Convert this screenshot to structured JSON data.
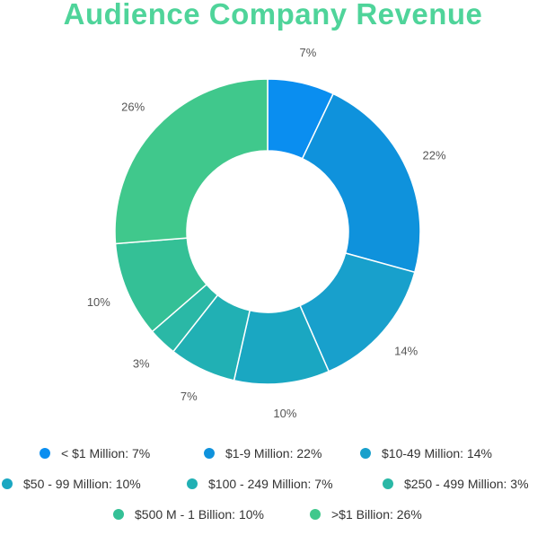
{
  "title": "Audience Company Revenue",
  "chart_data": {
    "type": "pie",
    "donut": true,
    "title": "Audience Company Revenue",
    "categories": [
      "< $1 Million",
      "$1-9 Million",
      "$10-49 Million",
      "$50 - 99 Million",
      "$100 - 249 Million",
      "$250 - 499 Million",
      "$500 M - 1 Billion",
      ">$1 Billion"
    ],
    "values": [
      7,
      22,
      14,
      10,
      7,
      3,
      10,
      26
    ],
    "value_labels": [
      "7%",
      "22%",
      "14%",
      "10%",
      "7%",
      "3%",
      "10%",
      "26%"
    ],
    "colors": [
      "#0a8ef0",
      "#0f92dc",
      "#18a0cc",
      "#1aa7c2",
      "#21b0b4",
      "#2ab8a6",
      "#34c096",
      "#40c88c"
    ],
    "legend_position": "bottom"
  },
  "legend": [
    {
      "label": "< $1 Million: 7%",
      "color": "#0a8ef0"
    },
    {
      "label": "$1-9 Million: 22%",
      "color": "#0f92dc"
    },
    {
      "label": "$10-49 Million: 14%",
      "color": "#18a0cc"
    },
    {
      "label": "$50 - 99 Million: 10%",
      "color": "#1aa7c2"
    },
    {
      "label": "$100 - 249 Million: 7%",
      "color": "#21b0b4"
    },
    {
      "label": "$250 - 499 Million: 3%",
      "color": "#2ab8a6"
    },
    {
      "label": "$500 M - 1 Billion: 10%",
      "color": "#34c096"
    },
    {
      "label": ">$1 Billion: 26%",
      "color": "#40c88c"
    }
  ]
}
